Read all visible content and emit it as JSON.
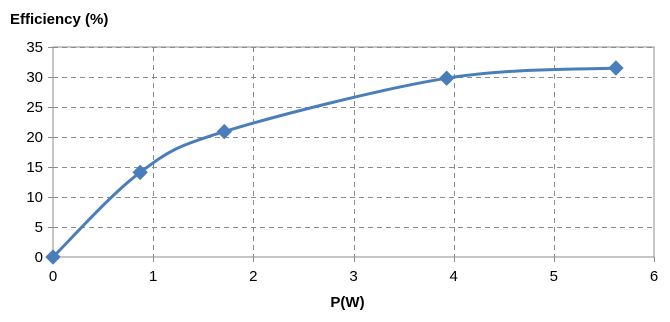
{
  "chart_data": {
    "type": "line",
    "title": "",
    "ylabel": "Efficiency (%)",
    "xlabel": "P(W)",
    "xlim": [
      0,
      6
    ],
    "ylim": [
      0,
      35
    ],
    "x_ticks": [
      0,
      1,
      2,
      3,
      4,
      5,
      6
    ],
    "y_ticks": [
      0,
      5,
      10,
      15,
      20,
      25,
      30,
      35
    ],
    "x_tick_labels": [
      "0",
      "1",
      "2",
      "3",
      "4",
      "5",
      "6"
    ],
    "y_tick_labels": [
      "0",
      "5",
      "10",
      "15",
      "20",
      "25",
      "30",
      "35"
    ],
    "grid": true,
    "grid_style": "dashed",
    "legend": false,
    "series": [
      {
        "x": [
          0,
          0.87,
          1.71,
          3.93,
          5.62
        ],
        "values": [
          0,
          14.1,
          20.9,
          29.8,
          31.5
        ],
        "color": "#4a7ebb",
        "marker": "diamond",
        "smooth": true
      }
    ]
  }
}
